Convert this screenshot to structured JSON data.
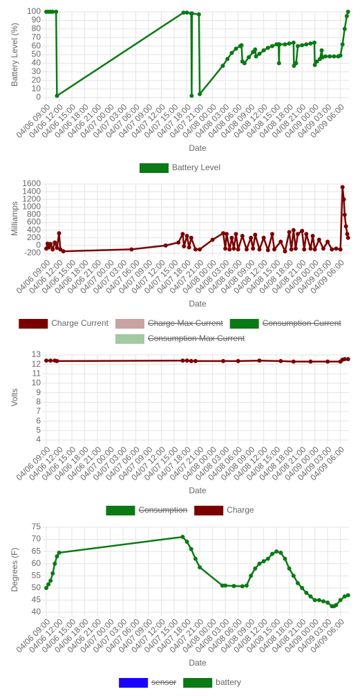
{
  "chart_data": [
    {
      "type": "line",
      "y_label": "Battery Level (%)",
      "x_label": "Date",
      "grid": true,
      "legend": "bottom",
      "xlim": [
        0,
        71
      ],
      "ylim": [
        0,
        100
      ],
      "yticks": [
        0,
        10,
        20,
        30,
        40,
        50,
        60,
        70,
        80,
        90,
        100
      ],
      "xticks": [
        {
          "value": 0,
          "label": "04/06 09:00"
        },
        {
          "value": 3,
          "label": "04/06 12:00"
        },
        {
          "value": 6,
          "label": "04/06 15:00"
        },
        {
          "value": 9,
          "label": "04/06 18:00"
        },
        {
          "value": 12,
          "label": "04/06 21:00"
        },
        {
          "value": 15,
          "label": "04/07 00:00"
        },
        {
          "value": 18,
          "label": "04/07 03:00"
        },
        {
          "value": 21,
          "label": "04/07 06:00"
        },
        {
          "value": 24,
          "label": "04/07 09:00"
        },
        {
          "value": 27,
          "label": "04/07 12:00"
        },
        {
          "value": 30,
          "label": "04/07 15:00"
        },
        {
          "value": 33,
          "label": "04/07 18:00"
        },
        {
          "value": 36,
          "label": "04/07 21:00"
        },
        {
          "value": 39,
          "label": "04/08 00:00"
        },
        {
          "value": 42,
          "label": "04/08 03:00"
        },
        {
          "value": 45,
          "label": "04/08 06:00"
        },
        {
          "value": 48,
          "label": "04/08 09:00"
        },
        {
          "value": 51,
          "label": "04/08 12:00"
        },
        {
          "value": 54,
          "label": "04/08 15:00"
        },
        {
          "value": 57,
          "label": "04/08 18:00"
        },
        {
          "value": 60,
          "label": "04/08 21:00"
        },
        {
          "value": 63,
          "label": "04/09 00:00"
        },
        {
          "value": 66,
          "label": "04/09 03:00"
        },
        {
          "value": 69,
          "label": "04/09 06:00"
        }
      ],
      "series": [
        {
          "name": "Battery Level",
          "color": "#0a7a14",
          "hidden": false,
          "x": [
            0,
            0.5,
            1,
            1.5,
            2.3,
            2.5,
            32.2,
            33,
            34,
            34.1,
            34.2,
            35.8,
            36,
            41.4,
            42.5,
            43.5,
            44.5,
            45.5,
            45.8,
            46,
            46.5,
            47.5,
            48.5,
            49,
            49.2,
            50,
            51,
            52,
            53,
            54,
            54.5,
            54.6,
            54.7,
            56,
            57,
            58,
            58.1,
            58.6,
            59,
            60,
            61,
            62,
            62.9,
            63,
            63.5,
            64.2,
            64.6,
            64.8,
            65.5,
            66.5,
            67.5,
            68.5,
            69,
            69.5,
            70,
            70.5,
            70.8
          ],
          "values": [
            100,
            100,
            100,
            100,
            100,
            2,
            99,
            99,
            98,
            2,
            98,
            97,
            4,
            37,
            45,
            52,
            57,
            60,
            61,
            42,
            40,
            47,
            53,
            56,
            48,
            51,
            55,
            58,
            60,
            62,
            62,
            40,
            62,
            62,
            63,
            64,
            37,
            40,
            60,
            61,
            62,
            63,
            64,
            38,
            42,
            45,
            55,
            47,
            48,
            48,
            48,
            48,
            49,
            62,
            80,
            95,
            100
          ]
        }
      ]
    },
    {
      "type": "line",
      "y_label": "Milliamps",
      "x_label": "Date",
      "grid": true,
      "legend": "bottom",
      "xlim": [
        0,
        71
      ],
      "ylim": [
        -200,
        1600
      ],
      "yticks": [
        -200,
        0,
        200,
        400,
        600,
        800,
        1000,
        1200,
        1400,
        1600
      ],
      "xticks": [
        {
          "value": 0,
          "label": "04/06 09:00"
        },
        {
          "value": 3,
          "label": "04/06 12:00"
        },
        {
          "value": 6,
          "label": "04/06 15:00"
        },
        {
          "value": 9,
          "label": "04/06 18:00"
        },
        {
          "value": 12,
          "label": "04/06 21:00"
        },
        {
          "value": 15,
          "label": "04/07 00:00"
        },
        {
          "value": 18,
          "label": "04/07 03:00"
        },
        {
          "value": 21,
          "label": "04/07 06:00"
        },
        {
          "value": 24,
          "label": "04/07 09:00"
        },
        {
          "value": 27,
          "label": "04/07 12:00"
        },
        {
          "value": 30,
          "label": "04/07 15:00"
        },
        {
          "value": 33,
          "label": "04/07 18:00"
        },
        {
          "value": 36,
          "label": "04/07 21:00"
        },
        {
          "value": 39,
          "label": "04/08 00:00"
        },
        {
          "value": 42,
          "label": "04/08 03:00"
        },
        {
          "value": 45,
          "label": "04/08 06:00"
        },
        {
          "value": 48,
          "label": "04/08 09:00"
        },
        {
          "value": 51,
          "label": "04/08 12:00"
        },
        {
          "value": 54,
          "label": "04/08 15:00"
        },
        {
          "value": 57,
          "label": "04/08 18:00"
        },
        {
          "value": 60,
          "label": "04/08 21:00"
        },
        {
          "value": 63,
          "label": "04/09 00:00"
        },
        {
          "value": 66,
          "label": "04/09 03:00"
        },
        {
          "value": 69,
          "label": "04/09 06:00"
        }
      ],
      "series": [
        {
          "name": "Charge Current",
          "color": "#7a0000",
          "hidden": false,
          "x": [
            0,
            0.3,
            0.6,
            1,
            1.5,
            2,
            2.5,
            3,
            3.3,
            4,
            20,
            28,
            31,
            32,
            32.3,
            33,
            33.5,
            34,
            35,
            36,
            39,
            41.5,
            42,
            42.3,
            43,
            43.5,
            44,
            44.5,
            45,
            46,
            47,
            48,
            48.5,
            49,
            50,
            51,
            52,
            53,
            53.5,
            55,
            56,
            57,
            57.5,
            58,
            58.5,
            59,
            60,
            60.5,
            61,
            62,
            62.5,
            63,
            64,
            65,
            66,
            67,
            68,
            69,
            69.5,
            69.8,
            70,
            70.3,
            70.6,
            70.8
          ],
          "values": [
            -80,
            50,
            -50,
            40,
            -100,
            80,
            -60,
            320,
            -100,
            -150,
            -100,
            0,
            80,
            300,
            -20,
            250,
            -50,
            200,
            -100,
            -100,
            150,
            320,
            -80,
            300,
            -100,
            200,
            -80,
            300,
            -100,
            250,
            -100,
            200,
            -80,
            280,
            -100,
            200,
            -120,
            300,
            -100,
            100,
            -150,
            350,
            -100,
            400,
            -80,
            300,
            380,
            -100,
            300,
            -80,
            250,
            -100,
            150,
            -80,
            100,
            -100,
            -80,
            -100,
            1520,
            1200,
            800,
            500,
            300,
            200
          ]
        },
        {
          "name": "Charge Max Current",
          "color": "#c9a3a3",
          "hidden": true
        },
        {
          "name": "Consumption Current",
          "color": "#0a7a14",
          "hidden": true
        },
        {
          "name": "Consumption Max Current",
          "color": "#a3c9a3",
          "hidden": true
        }
      ]
    },
    {
      "type": "line",
      "y_label": "Volts",
      "x_label": "Date",
      "grid": true,
      "legend": "bottom",
      "xlim": [
        0,
        71
      ],
      "ylim": [
        4,
        13
      ],
      "yticks": [
        4,
        5,
        6,
        7,
        8,
        9,
        10,
        11,
        12,
        13
      ],
      "xticks": [
        {
          "value": 0,
          "label": "04/06 09:00"
        },
        {
          "value": 3,
          "label": "04/06 12:00"
        },
        {
          "value": 6,
          "label": "04/06 15:00"
        },
        {
          "value": 9,
          "label": "04/06 18:00"
        },
        {
          "value": 12,
          "label": "04/06 21:00"
        },
        {
          "value": 15,
          "label": "04/07 00:00"
        },
        {
          "value": 18,
          "label": "04/07 03:00"
        },
        {
          "value": 21,
          "label": "04/07 06:00"
        },
        {
          "value": 24,
          "label": "04/07 09:00"
        },
        {
          "value": 27,
          "label": "04/07 12:00"
        },
        {
          "value": 30,
          "label": "04/07 15:00"
        },
        {
          "value": 33,
          "label": "04/07 18:00"
        },
        {
          "value": 36,
          "label": "04/07 21:00"
        },
        {
          "value": 39,
          "label": "04/08 00:00"
        },
        {
          "value": 42,
          "label": "04/08 03:00"
        },
        {
          "value": 45,
          "label": "04/08 06:00"
        },
        {
          "value": 48,
          "label": "04/08 09:00"
        },
        {
          "value": 51,
          "label": "04/08 12:00"
        },
        {
          "value": 54,
          "label": "04/08 15:00"
        },
        {
          "value": 57,
          "label": "04/08 18:00"
        },
        {
          "value": 60,
          "label": "04/08 21:00"
        },
        {
          "value": 63,
          "label": "04/09 00:00"
        },
        {
          "value": 66,
          "label": "04/09 03:00"
        },
        {
          "value": 69,
          "label": "04/09 06:00"
        }
      ],
      "series": [
        {
          "name": "Consumption",
          "color": "#0a7a14",
          "hidden": true
        },
        {
          "name": "Charge",
          "color": "#7a0000",
          "hidden": false,
          "x": [
            0,
            1,
            2,
            2.5,
            32,
            33,
            34,
            35,
            41.5,
            45,
            50,
            55,
            58,
            62,
            66,
            69,
            69.5,
            70,
            70.8
          ],
          "values": [
            12.4,
            12.4,
            12.4,
            12.35,
            12.4,
            12.4,
            12.35,
            12.35,
            12.35,
            12.35,
            12.4,
            12.35,
            12.3,
            12.3,
            12.3,
            12.3,
            12.5,
            12.55,
            12.55
          ]
        }
      ]
    },
    {
      "type": "line",
      "y_label": "Degrees (F)",
      "x_label": "Date",
      "grid": true,
      "legend": "bottom",
      "xlim": [
        0,
        71
      ],
      "ylim": [
        40,
        75
      ],
      "yticks": [
        40,
        45,
        50,
        55,
        60,
        65,
        70,
        75
      ],
      "xticks": [
        {
          "value": 0,
          "label": "04/06 09:00"
        },
        {
          "value": 3,
          "label": "04/06 12:00"
        },
        {
          "value": 6,
          "label": "04/06 15:00"
        },
        {
          "value": 9,
          "label": "04/06 18:00"
        },
        {
          "value": 12,
          "label": "04/06 21:00"
        },
        {
          "value": 15,
          "label": "04/07 00:00"
        },
        {
          "value": 18,
          "label": "04/07 03:00"
        },
        {
          "value": 21,
          "label": "04/07 06:00"
        },
        {
          "value": 24,
          "label": "04/07 09:00"
        },
        {
          "value": 27,
          "label": "04/07 12:00"
        },
        {
          "value": 30,
          "label": "04/07 15:00"
        },
        {
          "value": 33,
          "label": "04/07 18:00"
        },
        {
          "value": 36,
          "label": "04/07 21:00"
        },
        {
          "value": 39,
          "label": "04/08 00:00"
        },
        {
          "value": 42,
          "label": "04/08 03:00"
        },
        {
          "value": 45,
          "label": "04/08 06:00"
        },
        {
          "value": 48,
          "label": "04/08 09:00"
        },
        {
          "value": 51,
          "label": "04/08 12:00"
        },
        {
          "value": 54,
          "label": "04/08 15:00"
        },
        {
          "value": 57,
          "label": "04/08 18:00"
        },
        {
          "value": 60,
          "label": "04/08 21:00"
        },
        {
          "value": 63,
          "label": "04/09 00:00"
        },
        {
          "value": 66,
          "label": "04/09 03:00"
        },
        {
          "value": 69,
          "label": "04/09 06:00"
        }
      ],
      "series": [
        {
          "name": "sensor",
          "color": "#1a00ff",
          "hidden": true
        },
        {
          "name": "battery",
          "color": "#0a7a14",
          "hidden": false,
          "x": [
            0,
            0.5,
            1,
            1.5,
            2,
            2.5,
            3,
            32,
            33,
            34,
            35,
            36,
            41.3,
            42,
            44,
            46,
            47,
            48,
            49,
            50,
            51,
            52,
            53,
            54,
            55,
            56,
            57,
            58,
            59,
            60,
            61,
            62,
            63,
            64,
            65,
            66,
            67,
            67.5,
            68,
            69,
            70,
            70.8
          ],
          "values": [
            50,
            51.5,
            53,
            56,
            60,
            63,
            64.5,
            71,
            69,
            66,
            62,
            58.5,
            51,
            51,
            50.8,
            50.7,
            51,
            55,
            58,
            60,
            61,
            62,
            64,
            65,
            64.5,
            62,
            58,
            55,
            52,
            50,
            48,
            46.5,
            45,
            45,
            44.5,
            44,
            42.5,
            42.5,
            43,
            45,
            46.5,
            47
          ]
        }
      ]
    }
  ]
}
